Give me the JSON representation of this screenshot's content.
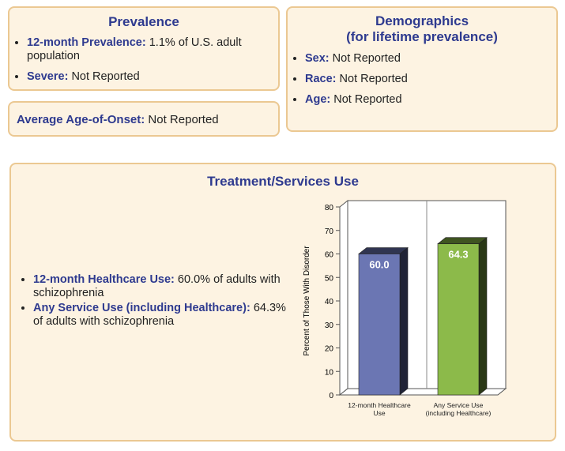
{
  "prevalence": {
    "title": "Prevalence",
    "items": [
      {
        "label": "12-month Prevalence:",
        "text": "1.1% of U.S. adult population"
      },
      {
        "label": "Severe:",
        "text": "Not Reported"
      }
    ]
  },
  "age_of_onset": {
    "label": "Average Age-of-Onset:",
    "text": "Not Reported"
  },
  "demographics": {
    "title": "Demographics",
    "subtitle": "(for lifetime prevalence)",
    "items": [
      {
        "label": "Sex:",
        "text": "Not Reported"
      },
      {
        "label": "Race:",
        "text": "Not Reported"
      },
      {
        "label": "Age:",
        "text": "Not Reported"
      }
    ]
  },
  "treatment": {
    "title": "Treatment/Services Use",
    "items": [
      {
        "label": "12-month Healthcare Use:",
        "text": "60.0% of adults with schizophrenia"
      },
      {
        "label": "Any Service Use (including Healthcare):",
        "text": "64.3% of adults with schizophrenia"
      }
    ]
  },
  "chart_data": {
    "type": "bar",
    "ylabel": "Percent of Those With Disorder",
    "categories": [
      "12-month Healthcare Use",
      "Any Service Use (including Healthcare)"
    ],
    "values": [
      60.0,
      64.3
    ],
    "value_labels": [
      "60.0",
      "64.3"
    ],
    "colors": [
      "#6b76b3",
      "#8cba4a"
    ],
    "ylim": [
      0,
      80
    ],
    "yticks": [
      0,
      10,
      20,
      30,
      40,
      50,
      60,
      70,
      80
    ],
    "grid": false
  }
}
